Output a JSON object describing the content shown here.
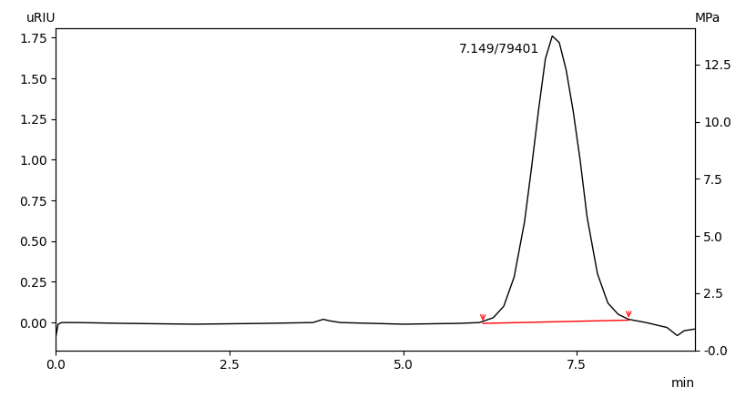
{
  "chart_data": {
    "type": "line",
    "x_label": "min",
    "y_label": "uRIU",
    "y2_label": "MPa",
    "x": [
      0.0,
      0.03,
      0.08,
      0.3,
      1.0,
      2.0,
      3.0,
      3.7,
      3.85,
      3.95,
      4.1,
      5.0,
      5.8,
      6.1,
      6.3,
      6.45,
      6.6,
      6.75,
      6.85,
      6.95,
      7.05,
      7.149,
      7.25,
      7.35,
      7.45,
      7.55,
      7.65,
      7.8,
      7.95,
      8.1,
      8.25,
      8.5,
      8.8,
      8.95,
      9.05,
      9.2
    ],
    "series": [
      {
        "color": "#000000",
        "values": [
          -0.08,
          -0.01,
          0.0,
          0.0,
          -0.005,
          -0.01,
          -0.005,
          0.0,
          0.02,
          0.01,
          0.0,
          -0.01,
          -0.005,
          0.0,
          0.03,
          0.1,
          0.28,
          0.62,
          0.95,
          1.3,
          1.62,
          1.76,
          1.72,
          1.55,
          1.3,
          1.0,
          0.65,
          0.3,
          0.12,
          0.05,
          0.02,
          0.0,
          -0.03,
          -0.08,
          -0.05,
          -0.04
        ]
      }
    ],
    "baseline": {
      "x": [
        6.15,
        8.25
      ],
      "values": [
        -0.005,
        0.015
      ],
      "color": "#ff0000"
    },
    "annotations": [
      {
        "text": "7.149/79401",
        "x": 7.149,
        "y": 1.76
      }
    ],
    "xlim": [
      0,
      9.2
    ],
    "xticks": [
      {
        "value": 0,
        "label": "0.0"
      },
      {
        "value": 2.5,
        "label": "2.5"
      },
      {
        "value": 5,
        "label": "5.0"
      },
      {
        "value": 7.5,
        "label": "7.5"
      }
    ],
    "ylim": [
      -0.17,
      1.81
    ],
    "yticks": [
      {
        "value": 0,
        "label": "0.00"
      },
      {
        "value": 0.25,
        "label": "0.25"
      },
      {
        "value": 0.5,
        "label": "0.50"
      },
      {
        "value": 0.75,
        "label": "0.75"
      },
      {
        "value": 1,
        "label": "1.00"
      },
      {
        "value": 1.25,
        "label": "1.25"
      },
      {
        "value": 1.5,
        "label": "1.50"
      },
      {
        "value": 1.75,
        "label": "1.75"
      }
    ],
    "y2lim": [
      0,
      14.1
    ],
    "y2ticks": [
      {
        "value": 0,
        "label": "-0.0"
      },
      {
        "value": 2.5,
        "label": "2.5"
      },
      {
        "value": 5,
        "label": "5.0"
      },
      {
        "value": 7.5,
        "label": "7.5"
      },
      {
        "value": 10,
        "label": "10.0"
      },
      {
        "value": 12.5,
        "label": "12.5"
      }
    ],
    "grid": false
  }
}
